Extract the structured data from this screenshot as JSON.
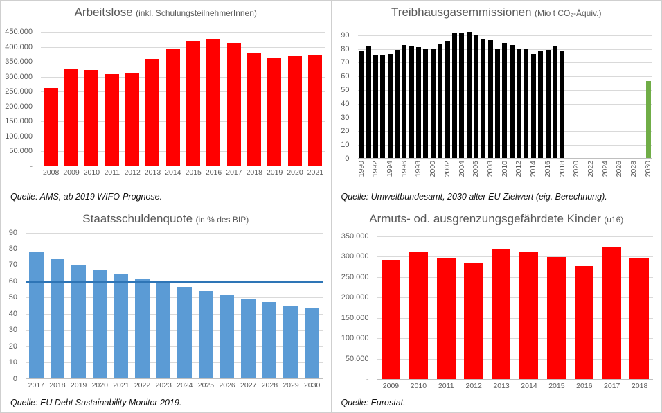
{
  "accent_colors": {
    "red": "#ff0000",
    "black": "#000000",
    "green": "#70ad47",
    "blue_bar": "#5b9bd5",
    "blue_line": "#2e75b6",
    "text_gray": "#595959",
    "gridline": "#d9d9d9"
  },
  "chart_data": [
    {
      "id": "arbeitslose",
      "type": "bar",
      "title_main": "Arbeitslose",
      "title_sub": "(inkl. SchulungsteilnehmerInnen)",
      "source": "Quelle: AMS, ab 2019 WIFO-Prognose.",
      "categories": [
        "2008",
        "2009",
        "2010",
        "2011",
        "2012",
        "2013",
        "2014",
        "2015",
        "2016",
        "2017",
        "2018",
        "2019",
        "2020",
        "2021"
      ],
      "values": [
        263000,
        324000,
        322000,
        309000,
        311000,
        360000,
        393000,
        419000,
        424000,
        413000,
        378000,
        364000,
        370000,
        374000
      ],
      "bar_color": "#ff0000",
      "ylim": [
        0,
        450000
      ],
      "ytick_values": [
        0,
        50000,
        100000,
        150000,
        200000,
        250000,
        300000,
        350000,
        400000,
        450000
      ],
      "ytick_labels": [
        "-",
        "50.000",
        "100.000",
        "150.000",
        "200.000",
        "250.000",
        "300.000",
        "350.000",
        "400.000",
        "450.000"
      ],
      "xtick_every": 1,
      "x_rotate": false,
      "grid": true,
      "legend": "none"
    },
    {
      "id": "treibhausgas",
      "type": "bar",
      "title_main": "Treibhausgasemmissionen",
      "title_sub": "(Mio t CO₂-Äquiv.)",
      "source": "Quelle: Umweltbundesamt, 2030 alter EU-Zielwert (eig. Berechnung).",
      "categories": [
        "1990",
        "1991",
        "1992",
        "1993",
        "1994",
        "1995",
        "1996",
        "1997",
        "1998",
        "1999",
        "2000",
        "2001",
        "2002",
        "2003",
        "2004",
        "2005",
        "2006",
        "2007",
        "2008",
        "2009",
        "2010",
        "2011",
        "2012",
        "2013",
        "2014",
        "2015",
        "2016",
        "2017",
        "2018",
        "2019",
        "2020",
        "2021",
        "2022",
        "2023",
        "2024",
        "2025",
        "2026",
        "2027",
        "2028",
        "2029",
        "2030"
      ],
      "values": [
        78.5,
        82.5,
        75.5,
        76,
        76.5,
        79.5,
        83,
        82.5,
        81.5,
        80,
        80.5,
        84,
        86,
        91.5,
        91.5,
        92.5,
        90,
        87.5,
        86.5,
        80,
        84.5,
        83,
        80,
        80,
        76.5,
        79,
        79.5,
        82,
        79,
        null,
        null,
        null,
        null,
        null,
        null,
        null,
        null,
        null,
        null,
        null,
        56.5
      ],
      "bar_color": "#000000",
      "color_overrides": {
        "2030": "#70ad47"
      },
      "ylim": [
        0,
        95
      ],
      "ytick_values": [
        0,
        10,
        20,
        30,
        40,
        50,
        60,
        70,
        80,
        90
      ],
      "ytick_labels": [
        "0",
        "10",
        "20",
        "30",
        "40",
        "50",
        "60",
        "70",
        "80",
        "90"
      ],
      "xtick_every": 2,
      "x_rotate": true,
      "grid": true,
      "legend": "none"
    },
    {
      "id": "staatsschuldenquote",
      "type": "bar",
      "title_main": "Staatsschuldenquote",
      "title_sub": "(in % des BIP)",
      "source": "Quelle: EU Debt Sustainability Monitor 2019.",
      "categories": [
        "2017",
        "2018",
        "2019",
        "2020",
        "2021",
        "2022",
        "2023",
        "2024",
        "2025",
        "2026",
        "2027",
        "2028",
        "2029",
        "2030"
      ],
      "values": [
        78,
        73.5,
        70,
        67,
        64,
        61.5,
        59.5,
        56.5,
        54,
        51.5,
        49,
        47,
        44.5,
        43.5
      ],
      "bar_color": "#5b9bd5",
      "ref_line": {
        "value": 60,
        "color": "#2e75b6"
      },
      "ylim": [
        0,
        90
      ],
      "ytick_values": [
        0,
        10,
        20,
        30,
        40,
        50,
        60,
        70,
        80,
        90
      ],
      "ytick_labels": [
        "0",
        "10",
        "20",
        "30",
        "40",
        "50",
        "60",
        "70",
        "80",
        "90"
      ],
      "xtick_every": 1,
      "x_rotate": false,
      "grid": true,
      "legend": "none"
    },
    {
      "id": "armutsgefaehrdete-kinder",
      "type": "bar",
      "title_main": "Armuts- od. ausgrenzungsgefährdete Kinder",
      "title_sub": "(u16)",
      "source": "Quelle: Eurostat.",
      "categories": [
        "2009",
        "2010",
        "2011",
        "2012",
        "2013",
        "2014",
        "2015",
        "2016",
        "2017",
        "2018"
      ],
      "values": [
        292000,
        310000,
        297000,
        285000,
        317000,
        310000,
        298000,
        276000,
        324000,
        296000
      ],
      "bar_color": "#ff0000",
      "ylim": [
        0,
        350000
      ],
      "ytick_values": [
        0,
        50000,
        100000,
        150000,
        200000,
        250000,
        300000,
        350000
      ],
      "ytick_labels": [
        "-",
        "50.000",
        "100.000",
        "150.000",
        "200.000",
        "250.000",
        "300.000",
        "350.000"
      ],
      "xtick_every": 1,
      "x_rotate": false,
      "grid": true,
      "legend": "none"
    }
  ]
}
